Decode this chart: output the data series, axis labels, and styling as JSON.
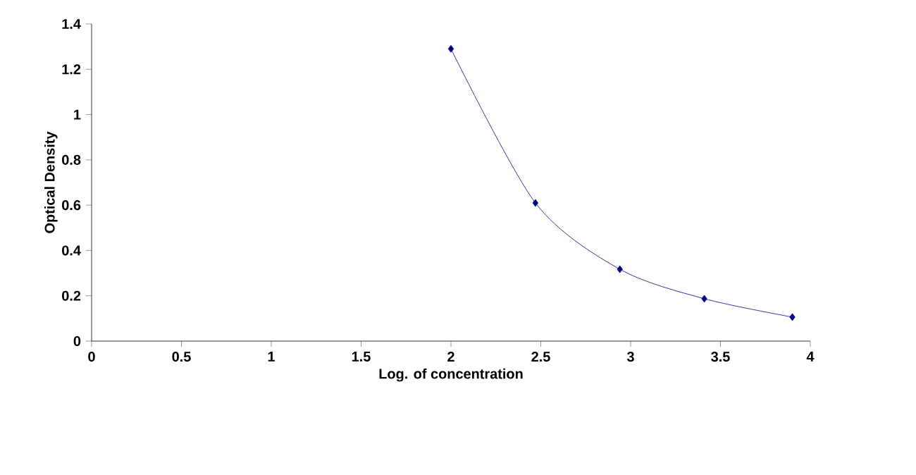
{
  "chart_data": {
    "type": "line",
    "xlabel": "Log. of concentration",
    "ylabel": "Optical Density",
    "x": [
      2,
      2.47,
      2.94,
      3.41,
      3.9
    ],
    "values": [
      1.29,
      0.61,
      0.317,
      0.187,
      0.106
    ],
    "color": "#000080",
    "marker": "diamond",
    "line_style": "solid",
    "xlim": [
      0,
      4
    ],
    "ylim": [
      0,
      1.4
    ],
    "xticks": [
      0,
      0.5,
      1,
      1.5,
      2,
      2.5,
      3,
      3.5,
      4
    ],
    "yticks": [
      0,
      0.2,
      0.4,
      0.6,
      0.8,
      1,
      1.2,
      1.4
    ]
  }
}
